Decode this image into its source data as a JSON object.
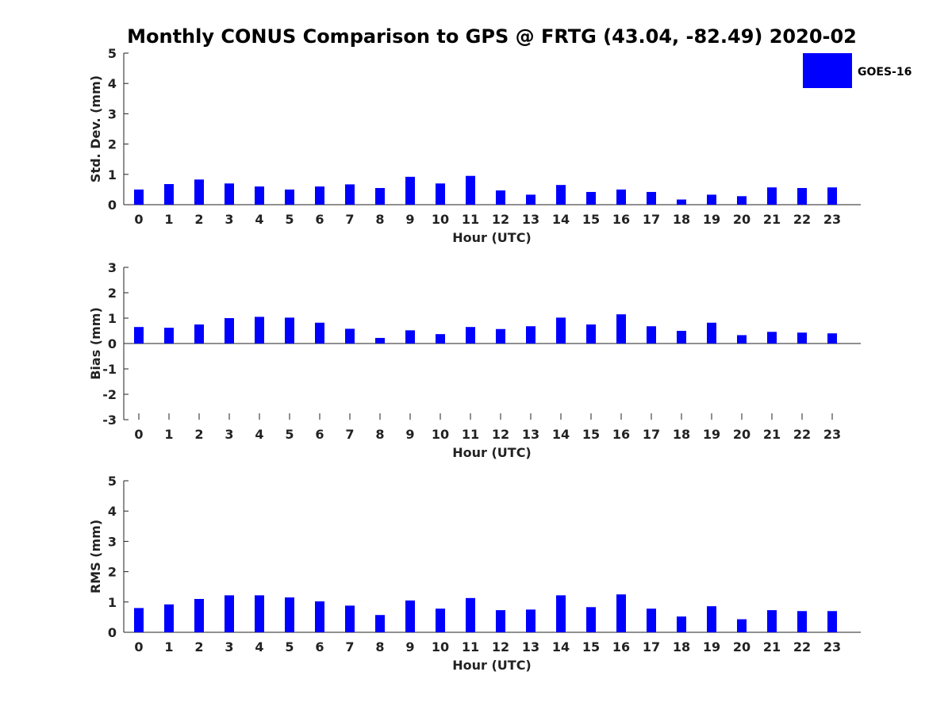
{
  "chart_data": {
    "title": "Monthly CONUS Comparison to GPS @ FRTG (43.04, -82.49) 2020-02",
    "legend": {
      "label": "GOES-16",
      "color": "#0000ff",
      "placement": "top-right"
    },
    "bar_color": "#0000ff",
    "panels": [
      {
        "type": "bar",
        "ylabel": "Std. Dev. (mm)",
        "xlabel": "Hour (UTC)",
        "ylim": [
          0,
          5
        ],
        "yticks": [
          0,
          1,
          2,
          3,
          4,
          5
        ],
        "ytick_labels": [
          "0",
          "1",
          "2",
          "3",
          "4",
          "5"
        ],
        "categories": [
          "0",
          "1",
          "2",
          "3",
          "4",
          "5",
          "6",
          "7",
          "8",
          "9",
          "10",
          "11",
          "12",
          "13",
          "14",
          "15",
          "16",
          "17",
          "18",
          "19",
          "20",
          "21",
          "22",
          "23"
        ],
        "series": [
          {
            "name": "GOES-16",
            "values": [
              0.5,
              0.68,
              0.83,
              0.7,
              0.6,
              0.5,
              0.6,
              0.67,
              0.55,
              0.92,
              0.7,
              0.95,
              0.47,
              0.33,
              0.65,
              0.42,
              0.5,
              0.42,
              0.17,
              0.33,
              0.28,
              0.57,
              0.55,
              0.57
            ]
          }
        ]
      },
      {
        "type": "bar",
        "ylabel": "Bias (mm)",
        "xlabel": "Hour (UTC)",
        "ylim": [
          -3,
          3
        ],
        "yticks": [
          -3,
          -2,
          -1,
          0,
          1,
          2,
          3
        ],
        "ytick_labels": [
          "-3",
          "-2",
          "-1",
          "0",
          "1",
          "2",
          "3"
        ],
        "categories": [
          "0",
          "1",
          "2",
          "3",
          "4",
          "5",
          "6",
          "7",
          "8",
          "9",
          "10",
          "11",
          "12",
          "13",
          "14",
          "15",
          "16",
          "17",
          "18",
          "19",
          "20",
          "21",
          "22",
          "23"
        ],
        "series": [
          {
            "name": "GOES-16",
            "values": [
              0.65,
              0.62,
              0.75,
              1.0,
              1.05,
              1.02,
              0.82,
              0.58,
              0.22,
              0.52,
              0.37,
              0.65,
              0.57,
              0.68,
              1.02,
              0.75,
              1.15,
              0.68,
              0.5,
              0.82,
              0.33,
              0.46,
              0.43,
              0.4
            ]
          }
        ]
      },
      {
        "type": "bar",
        "ylabel": "RMS (mm)",
        "xlabel": "Hour (UTC)",
        "ylim": [
          0,
          5
        ],
        "yticks": [
          0,
          1,
          2,
          3,
          4,
          5
        ],
        "ytick_labels": [
          "0",
          "1",
          "2",
          "3",
          "4",
          "5"
        ],
        "categories": [
          "0",
          "1",
          "2",
          "3",
          "4",
          "5",
          "6",
          "7",
          "8",
          "9",
          "10",
          "11",
          "12",
          "13",
          "14",
          "15",
          "16",
          "17",
          "18",
          "19",
          "20",
          "21",
          "22",
          "23"
        ],
        "series": [
          {
            "name": "GOES-16",
            "values": [
              0.8,
              0.92,
              1.1,
              1.22,
              1.22,
              1.15,
              1.02,
              0.88,
              0.57,
              1.05,
              0.78,
              1.13,
              0.73,
              0.75,
              1.22,
              0.83,
              1.25,
              0.78,
              0.52,
              0.86,
              0.43,
              0.73,
              0.7,
              0.7
            ]
          }
        ]
      }
    ]
  }
}
